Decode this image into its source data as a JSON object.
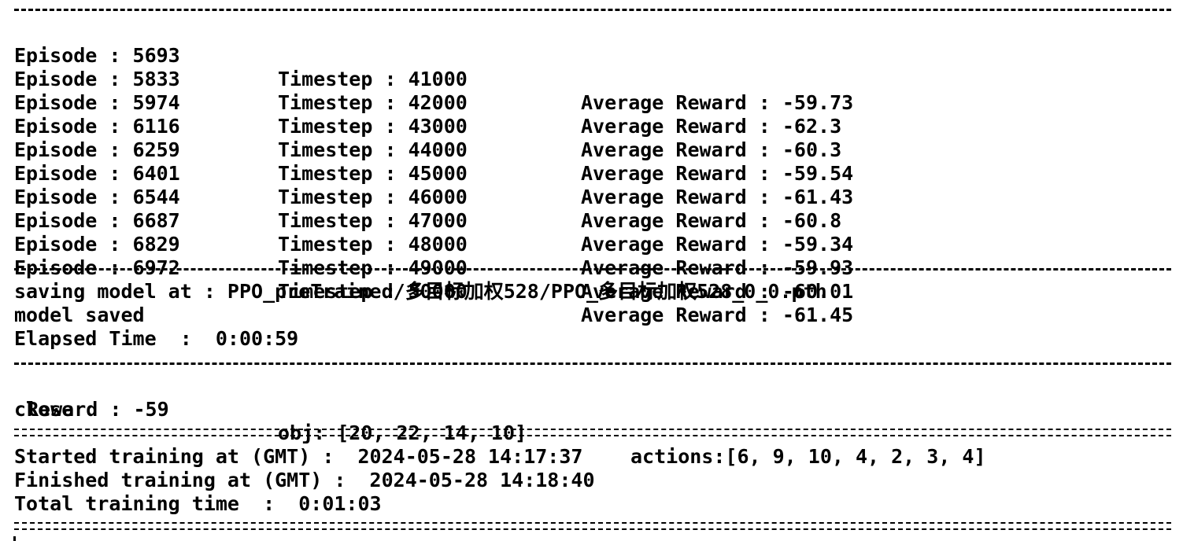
{
  "episodes": [
    {
      "episode": "Episode : 5693",
      "timestep": "Timestep : 41000",
      "reward": "Average Reward : -59.73"
    },
    {
      "episode": "Episode : 5833",
      "timestep": "Timestep : 42000",
      "reward": "Average Reward : -62.3"
    },
    {
      "episode": "Episode : 5974",
      "timestep": "Timestep : 43000",
      "reward": "Average Reward : -60.3"
    },
    {
      "episode": "Episode : 6116",
      "timestep": "Timestep : 44000",
      "reward": "Average Reward : -59.54"
    },
    {
      "episode": "Episode : 6259",
      "timestep": "Timestep : 45000",
      "reward": "Average Reward : -61.43"
    },
    {
      "episode": "Episode : 6401",
      "timestep": "Timestep : 46000",
      "reward": "Average Reward : -60.8"
    },
    {
      "episode": "Episode : 6544",
      "timestep": "Timestep : 47000",
      "reward": "Average Reward : -59.34"
    },
    {
      "episode": "Episode : 6687",
      "timestep": "Timestep : 48000",
      "reward": "Average Reward : -59.93"
    },
    {
      "episode": "Episode : 6829",
      "timestep": "Timestep : 49000",
      "reward": "Average Reward : -60.01"
    },
    {
      "episode": "Episode : 6972",
      "timestep": "Timestep : 50000",
      "reward": "Average Reward : -61.45"
    }
  ],
  "save": {
    "saving_line": "saving model at : PPO_preTrained/多目标加权528/PPO_多目标加权528_0_0.pth",
    "saved_line": "model saved",
    "elapsed_line": "Elapsed Time  :  0:00:59"
  },
  "result": {
    "reward": "Reward : -59",
    "obj": "obj: [20, 22, 14, 10]",
    "actions": "actions:[6, 9, 10, 4, 2, 3, 4]",
    "close": "close"
  },
  "summary": {
    "started": "Started training at (GMT) :  2024-05-28 14:17:37",
    "finished": "Finished training at (GMT) :  2024-05-28 14:18:40",
    "total": "Total training time  :  0:01:03"
  }
}
